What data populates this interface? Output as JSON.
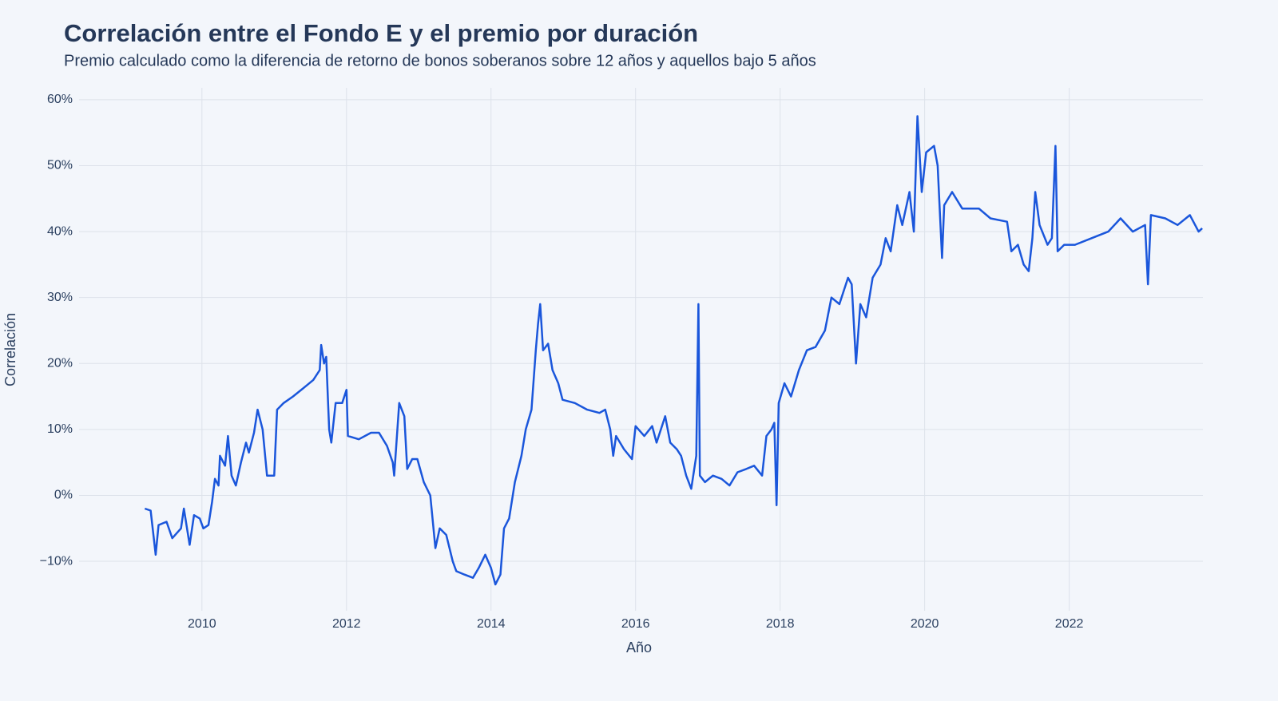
{
  "chart_data": {
    "type": "line",
    "title": "Correlación entre el Fondo E y el premio por duración",
    "subtitle": "Premio calculado como la diferencia de retorno de bonos soberanos sobre 12 años y aquellos bajo 5 años",
    "x_label": "Año",
    "y_label": "Correlación",
    "color": "#1a56db",
    "grid": true,
    "xlim": [
      2008.3,
      2023.85
    ],
    "xticks": [
      2010,
      2012,
      2014,
      2016,
      2018,
      2020,
      2022
    ],
    "ylim": [
      -17.5,
      61.8
    ],
    "yticks": [
      {
        "value": -10,
        "label": "−10%"
      },
      {
        "value": 0,
        "label": "0%"
      },
      {
        "value": 10,
        "label": "10%"
      },
      {
        "value": 20,
        "label": "20%"
      },
      {
        "value": 30,
        "label": "30%"
      },
      {
        "value": 40,
        "label": "40%"
      },
      {
        "value": 50,
        "label": "50%"
      },
      {
        "value": 60,
        "label": "60%"
      }
    ],
    "x": [
      2009.21,
      2009.29,
      2009.36,
      2009.4,
      2009.51,
      2009.59,
      2009.71,
      2009.75,
      2009.83,
      2009.89,
      2009.97,
      2010.02,
      2010.09,
      2010.14,
      2010.18,
      2010.23,
      2010.25,
      2010.32,
      2010.36,
      2010.41,
      2010.47,
      2010.54,
      2010.61,
      2010.65,
      2010.72,
      2010.77,
      2010.84,
      2010.9,
      2011.0,
      2011.04,
      2011.13,
      2011.26,
      2011.43,
      2011.54,
      2011.63,
      2011.65,
      2011.69,
      2011.72,
      2011.76,
      2011.79,
      2011.85,
      2011.94,
      2012.0,
      2012.02,
      2012.17,
      2012.34,
      2012.45,
      2012.56,
      2012.64,
      2012.66,
      2012.73,
      2012.8,
      2012.84,
      2012.91,
      2012.98,
      2013.07,
      2013.16,
      2013.23,
      2013.29,
      2013.38,
      2013.47,
      2013.52,
      2013.63,
      2013.75,
      2013.83,
      2013.92,
      2014.0,
      2014.06,
      2014.13,
      2014.18,
      2014.25,
      2014.33,
      2014.42,
      2014.48,
      2014.56,
      2014.62,
      2014.65,
      2014.68,
      2014.72,
      2014.79,
      2014.85,
      2014.93,
      2014.99,
      2015.16,
      2015.33,
      2015.5,
      2015.58,
      2015.65,
      2015.69,
      2015.73,
      2015.84,
      2015.95,
      2016.0,
      2016.12,
      2016.23,
      2016.29,
      2016.41,
      2016.48,
      2016.57,
      2016.63,
      2016.7,
      2016.77,
      2016.84,
      2016.87,
      2016.89,
      2016.96,
      2017.07,
      2017.19,
      2017.3,
      2017.41,
      2017.53,
      2017.64,
      2017.75,
      2017.81,
      2017.88,
      2017.92,
      2017.95,
      2017.98,
      2018.06,
      2018.15,
      2018.26,
      2018.37,
      2018.49,
      2018.62,
      2018.71,
      2018.82,
      2018.94,
      2018.99,
      2019.05,
      2019.11,
      2019.19,
      2019.28,
      2019.39,
      2019.46,
      2019.53,
      2019.62,
      2019.69,
      2019.79,
      2019.85,
      2019.9,
      2019.96,
      2020.02,
      2020.13,
      2020.18,
      2020.24,
      2020.27,
      2020.38,
      2020.52,
      2020.75,
      2020.91,
      2021.14,
      2021.2,
      2021.29,
      2021.37,
      2021.44,
      2021.49,
      2021.53,
      2021.59,
      2021.7,
      2021.76,
      2021.81,
      2021.84,
      2021.93,
      2022.08,
      2022.31,
      2022.54,
      2022.71,
      2022.88,
      2023.05,
      2023.09,
      2023.13,
      2023.33,
      2023.5,
      2023.67,
      2023.79,
      2023.84
    ],
    "values": [
      -2,
      -2.3,
      -9,
      -4.5,
      -4,
      -6.5,
      -5,
      -2,
      -7.5,
      -3,
      -3.5,
      -5,
      -4.5,
      -1,
      2.5,
      1.5,
      6,
      4.5,
      9,
      3,
      1.5,
      5,
      8,
      6.5,
      9.5,
      13,
      10,
      3,
      3,
      13,
      14,
      15,
      16.5,
      17.5,
      19,
      22.8,
      20,
      21,
      10,
      8,
      14,
      14,
      16,
      9,
      8.5,
      9.5,
      9.5,
      7.5,
      5,
      3,
      14,
      12,
      4,
      5.5,
      5.5,
      2,
      0,
      -8,
      -5,
      -6,
      -10,
      -11.5,
      -12,
      -12.5,
      -11,
      -9,
      -11,
      -13.5,
      -12,
      -5,
      -3.5,
      2,
      6,
      10,
      13,
      22,
      26,
      29,
      22,
      23,
      19,
      17,
      14.5,
      14,
      13,
      12.5,
      13,
      10,
      6,
      9,
      7,
      5.5,
      10.5,
      9,
      10.5,
      8,
      12,
      8,
      7,
      6,
      3,
      1,
      6,
      29,
      3,
      2,
      3,
      2.5,
      1.5,
      3.5,
      4,
      4.5,
      3,
      9,
      10,
      11,
      -1.5,
      14,
      17,
      15,
      19,
      22,
      22.5,
      25,
      30,
      29,
      33,
      32,
      20,
      29,
      27,
      33,
      35,
      39,
      37,
      44,
      41,
      46,
      40,
      57.5,
      46,
      52,
      53,
      50,
      36,
      44,
      46,
      43.5,
      43.5,
      42,
      41.5,
      37,
      38,
      35,
      34,
      39,
      46,
      41,
      38,
      39,
      53,
      37,
      38,
      38,
      39,
      40,
      42,
      40,
      41,
      32,
      42.5,
      42,
      41,
      42.5,
      40,
      40.5
    ]
  }
}
